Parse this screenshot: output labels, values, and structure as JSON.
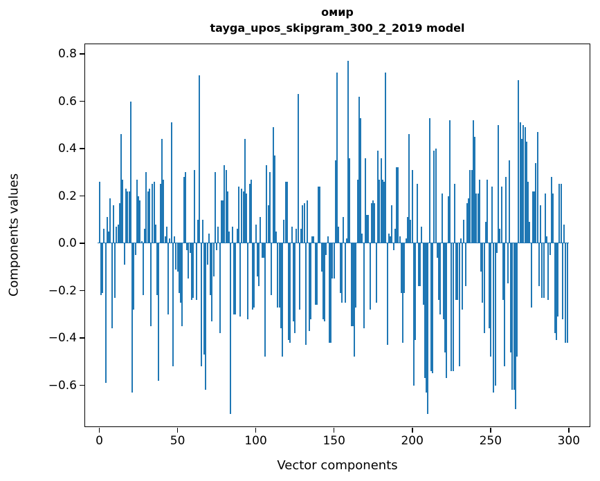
{
  "chart_data": {
    "type": "bar",
    "title": "омир",
    "subtitle": "tayga_upos_skipgram_300_2_2019 model",
    "xlabel": "Vector components",
    "ylabel": "Components values",
    "bar_color": "#1f77b4",
    "grid": false,
    "legend": null,
    "n_components": 300,
    "xlim": [
      -9,
      314
    ],
    "ylim": [
      -0.78,
      0.84
    ],
    "x_ticks": [
      0,
      50,
      100,
      150,
      200,
      250,
      300
    ],
    "x_tick_labels": [
      "0",
      "50",
      "100",
      "150",
      "200",
      "250",
      "300"
    ],
    "y_ticks": [
      0.8,
      0.6,
      0.4,
      0.2,
      0.0,
      -0.2,
      -0.4,
      -0.6
    ],
    "y_tick_labels": [
      "0.8",
      "0.6",
      "0.4",
      "0.2",
      "0.0",
      "−0.2",
      "−0.4",
      "−0.6"
    ],
    "values": [
      0.26,
      -0.22,
      -0.21,
      0.06,
      -0.59,
      0.11,
      0.05,
      0.19,
      -0.36,
      0.16,
      -0.23,
      0.07,
      0.08,
      0.17,
      0.46,
      0.27,
      -0.09,
      0.23,
      0.22,
      0.22,
      0.6,
      -0.63,
      -0.28,
      -0.05,
      0.27,
      0.2,
      0.18,
      0.01,
      -0.22,
      0.06,
      0.3,
      0.22,
      0.23,
      -0.35,
      0.25,
      0.26,
      0.08,
      -0.22,
      -0.58,
      0.25,
      0.44,
      0.27,
      0.03,
      0.07,
      -0.3,
      0.02,
      0.51,
      -0.52,
      0.03,
      -0.11,
      -0.12,
      -0.21,
      -0.25,
      -0.35,
      0.28,
      0.3,
      -0.03,
      -0.15,
      -0.04,
      -0.24,
      -0.23,
      0.31,
      -0.24,
      0.1,
      0.71,
      -0.52,
      0.1,
      -0.47,
      -0.62,
      -0.09,
      0.04,
      -0.22,
      -0.33,
      -0.14,
      0.3,
      -0.03,
      0.07,
      -0.38,
      0.18,
      0.18,
      0.33,
      0.31,
      0.22,
      0.05,
      -0.72,
      0.07,
      -0.3,
      -0.3,
      0.06,
      0.24,
      -0.31,
      0.23,
      0.22,
      0.44,
      0.21,
      -0.32,
      0.25,
      0.27,
      -0.28,
      -0.27,
      0.08,
      -0.14,
      -0.18,
      0.11,
      -0.06,
      -0.06,
      -0.48,
      0.33,
      0.16,
      0.3,
      -0.22,
      0.49,
      0.37,
      0.05,
      -0.27,
      -0.27,
      -0.36,
      -0.48,
      0.1,
      0.26,
      0.26,
      -0.41,
      -0.42,
      0.07,
      -0.33,
      -0.38,
      0.06,
      0.63,
      -0.28,
      0.06,
      0.16,
      0.17,
      -0.43,
      0.18,
      -0.37,
      -0.32,
      0.03,
      0.03,
      -0.26,
      -0.26,
      0.24,
      0.24,
      -0.12,
      -0.32,
      -0.33,
      -0.05,
      0.03,
      -0.42,
      -0.42,
      -0.15,
      -0.15,
      0.35,
      0.72,
      0.07,
      -0.21,
      -0.25,
      0.11,
      -0.25,
      0.02,
      0.77,
      0.36,
      -0.35,
      -0.35,
      -0.48,
      -0.27,
      0.27,
      0.62,
      0.53,
      0.04,
      -0.36,
      0.36,
      0.12,
      0.12,
      -0.28,
      0.17,
      0.18,
      0.17,
      -0.25,
      0.39,
      0.27,
      0.36,
      0.27,
      0.26,
      0.72,
      -0.43,
      0.04,
      0.03,
      0.16,
      -0.03,
      0.06,
      0.32,
      0.32,
      0.03,
      -0.21,
      -0.42,
      -0.21,
      0.02,
      0.11,
      0.46,
      0.1,
      0.31,
      -0.6,
      -0.41,
      0.25,
      -0.18,
      -0.18,
      0.07,
      -0.26,
      -0.57,
      -0.63,
      -0.72,
      0.53,
      -0.54,
      -0.55,
      0.39,
      0.4,
      -0.06,
      -0.24,
      -0.3,
      0.21,
      -0.32,
      -0.46,
      -0.57,
      0.2,
      0.52,
      -0.54,
      -0.54,
      0.25,
      -0.24,
      -0.24,
      -0.52,
      0.02,
      -0.28,
      0.1,
      -0.18,
      0.17,
      0.19,
      0.31,
      0.31,
      0.52,
      0.45,
      0.21,
      0.21,
      0.27,
      -0.12,
      -0.25,
      -0.38,
      0.09,
      0.27,
      -0.36,
      -0.48,
      0.24,
      -0.63,
      -0.6,
      -0.04,
      0.5,
      0.06,
      0.24,
      -0.24,
      -0.52,
      0.28,
      -0.17,
      0.35,
      -0.46,
      -0.62,
      -0.62,
      -0.7,
      -0.48,
      0.69,
      0.51,
      0.44,
      0.5,
      0.49,
      0.43,
      0.26,
      0.09,
      -0.27,
      0.22,
      0.22,
      0.34,
      0.47,
      -0.18,
      0.16,
      -0.23,
      -0.23,
      0.21,
      0.03,
      -0.24,
      -0.05,
      0.28,
      0.21,
      -0.38,
      -0.41,
      -0.31,
      0.25,
      0.25,
      -0.32,
      0.08,
      -0.42,
      -0.42
    ]
  }
}
